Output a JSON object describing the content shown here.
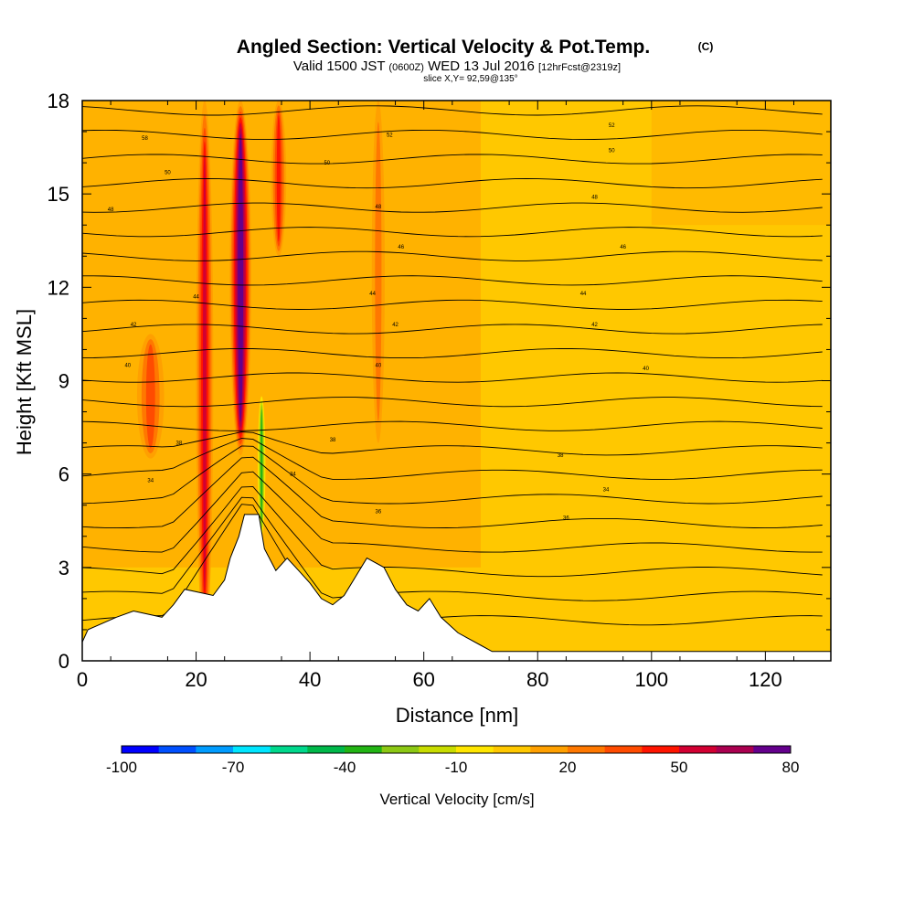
{
  "chart_data": {
    "type": "heatmap",
    "title": "Angled Section: Vertical Velocity & Pot.Temp.",
    "title_mark": "(C)",
    "subtitle": {
      "valid_prefix": "Valid 1500 JST",
      "zulu": "(0600Z)",
      "date": "WED 13 Jul 2016",
      "forecast": "[12hrFcst@2319z]"
    },
    "slice_label": "slice X,Y= 92,59@135°",
    "xlabel": "Distance [nm]",
    "ylabel": "Height [Kft MSL]",
    "xlim": [
      0,
      131.5
    ],
    "ylim": [
      0,
      18
    ],
    "x_ticks": [
      0,
      20,
      40,
      60,
      80,
      100,
      120
    ],
    "y_ticks": [
      0,
      3,
      6,
      9,
      12,
      15,
      18
    ],
    "colorbar": {
      "label": "Vertical Velocity [cm/s]",
      "min": -100,
      "max": 80,
      "step": 10,
      "tick_labels": [
        "-100",
        "-70",
        "-40",
        "-10",
        "20",
        "50",
        "80"
      ],
      "colors": [
        "#0000ff",
        "#0050ff",
        "#009cff",
        "#00e6ff",
        "#00d88c",
        "#00b84a",
        "#22b414",
        "#8cc814",
        "#c8dc00",
        "#ffe600",
        "#ffc800",
        "#ffa000",
        "#ff7800",
        "#ff4b00",
        "#ff1400",
        "#d20032",
        "#aa0050",
        "#64008c"
      ]
    },
    "terrain": [
      [
        0,
        0.6
      ],
      [
        1,
        1.0
      ],
      [
        6,
        1.4
      ],
      [
        9,
        1.6
      ],
      [
        14,
        1.4
      ],
      [
        16,
        1.8
      ],
      [
        18,
        2.3
      ],
      [
        23,
        2.1
      ],
      [
        25,
        2.6
      ],
      [
        26,
        3.3
      ],
      [
        27.5,
        4.0
      ],
      [
        28.5,
        4.7
      ],
      [
        31,
        4.7
      ],
      [
        32,
        3.6
      ],
      [
        34,
        2.9
      ],
      [
        36,
        3.3
      ],
      [
        38,
        2.9
      ],
      [
        40,
        2.5
      ],
      [
        42,
        2.0
      ],
      [
        44,
        1.8
      ],
      [
        46,
        2.1
      ],
      [
        48,
        2.7
      ],
      [
        50,
        3.3
      ],
      [
        53,
        3.0
      ],
      [
        55,
        2.3
      ],
      [
        57,
        1.8
      ],
      [
        59,
        1.6
      ],
      [
        61,
        2.0
      ],
      [
        63,
        1.4
      ],
      [
        66,
        0.9
      ],
      [
        70,
        0.5
      ],
      [
        72,
        0.3
      ],
      [
        131.5,
        0.3
      ]
    ],
    "theta_contours": [
      {
        "label": "34",
        "points": [
          [
            12,
            5.8
          ],
          [
            37,
            6.0
          ],
          [
            92,
            5.5
          ]
        ]
      },
      {
        "label": "36",
        "points": [
          [
            52,
            4.8
          ],
          [
            85,
            4.6
          ]
        ]
      },
      {
        "label": "38",
        "points": [
          [
            17,
            7.0
          ],
          [
            44,
            7.1
          ],
          [
            84,
            6.6
          ]
        ]
      },
      {
        "label": "40",
        "points": [
          [
            8,
            9.5
          ],
          [
            52,
            9.5
          ],
          [
            99,
            9.4
          ]
        ]
      },
      {
        "label": "42",
        "points": [
          [
            9,
            10.8
          ],
          [
            55,
            10.8
          ],
          [
            90,
            10.8
          ]
        ]
      },
      {
        "label": "44",
        "points": [
          [
            20,
            11.7
          ],
          [
            51,
            11.8
          ],
          [
            88,
            11.8
          ]
        ]
      },
      {
        "label": "46",
        "points": [
          [
            56,
            13.3
          ],
          [
            95,
            13.3
          ]
        ]
      },
      {
        "label": "48",
        "points": [
          [
            5,
            14.5
          ],
          [
            52,
            14.6
          ],
          [
            90,
            14.9
          ]
        ]
      },
      {
        "label": "50",
        "points": [
          [
            15,
            15.7
          ],
          [
            43,
            16.0
          ],
          [
            93,
            16.4
          ]
        ]
      },
      {
        "label": "52",
        "points": [
          [
            54,
            16.9
          ],
          [
            93,
            17.2
          ]
        ]
      },
      {
        "label": "58",
        "points": [
          [
            11,
            16.8
          ]
        ]
      }
    ],
    "velocity_features": [
      {
        "x": 21.5,
        "y": [
          0.5,
          18
        ],
        "width": 1.6,
        "peak": 50
      },
      {
        "x": 27.8,
        "y": [
          6.6,
          18
        ],
        "width": 2.0,
        "peak": 80
      },
      {
        "x": 34.5,
        "y": [
          13,
          18
        ],
        "width": 1.4,
        "peak": 40
      },
      {
        "x": 52,
        "y": [
          7,
          18
        ],
        "width": 1.2,
        "peak": 20
      },
      {
        "x": 12,
        "y": [
          6.5,
          10.5
        ],
        "width": 2.5,
        "peak": 25
      },
      {
        "x": 31.5,
        "y": [
          4.0,
          8.5
        ],
        "width": 0.7,
        "peak": -40
      }
    ]
  }
}
